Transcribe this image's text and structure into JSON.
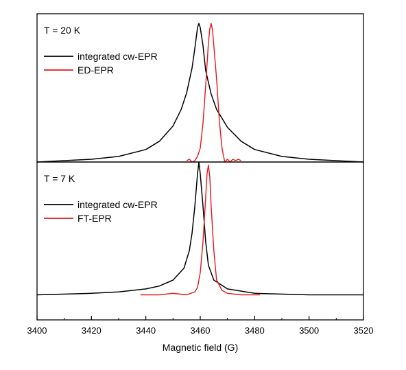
{
  "chart_data": {
    "type": "line",
    "xlabel": "Magnetic field (G)",
    "xlim": [
      3400,
      3520
    ],
    "xticks": [
      "3400",
      "3420",
      "3440",
      "3460",
      "3480",
      "3500",
      "3520"
    ],
    "shared_x_axis": true,
    "panels": [
      {
        "title": "T = 20 K",
        "ylim": [
          0,
          1.07
        ],
        "yticks_shown": false,
        "legend_position": "top-left",
        "series": [
          {
            "name": "integrated cw-EPR",
            "color": "#000000",
            "points": [
              [
                3400,
                0.0
              ],
              [
                3410,
                0.01
              ],
              [
                3420,
                0.02
              ],
              [
                3430,
                0.04
              ],
              [
                3440,
                0.09
              ],
              [
                3445,
                0.15
              ],
              [
                3450,
                0.26
              ],
              [
                3453,
                0.38
              ],
              [
                3455,
                0.5
              ],
              [
                3457,
                0.68
              ],
              [
                3458,
                0.82
              ],
              [
                3459,
                0.97
              ],
              [
                3459.5,
                1.0
              ],
              [
                3460,
                0.97
              ],
              [
                3461,
                0.84
              ],
              [
                3462,
                0.66
              ],
              [
                3464,
                0.49
              ],
              [
                3466,
                0.38
              ],
              [
                3470,
                0.25
              ],
              [
                3475,
                0.15
              ],
              [
                3480,
                0.09
              ],
              [
                3490,
                0.04
              ],
              [
                3500,
                0.02
              ],
              [
                3510,
                0.01
              ],
              [
                3520,
                0.0
              ]
            ]
          },
          {
            "name": "ED-EPR",
            "color": "#e8141c",
            "points": [
              [
                3455,
                0.01
              ],
              [
                3456,
                0.02
              ],
              [
                3457,
                0.0
              ],
              [
                3458,
                0.01
              ],
              [
                3459,
                0.04
              ],
              [
                3460,
                0.1
              ],
              [
                3461,
                0.28
              ],
              [
                3462,
                0.55
              ],
              [
                3463,
                0.86
              ],
              [
                3463.5,
                0.96
              ],
              [
                3464,
                1.0
              ],
              [
                3464.5,
                0.95
              ],
              [
                3465,
                0.84
              ],
              [
                3466,
                0.6
              ],
              [
                3467,
                0.3
              ],
              [
                3468,
                0.1
              ],
              [
                3469,
                0.0
              ],
              [
                3470,
                0.02
              ],
              [
                3471,
                0.0
              ],
              [
                3472,
                0.02
              ],
              [
                3473,
                0.01
              ],
              [
                3474,
                0.02
              ],
              [
                3475,
                0.01
              ]
            ]
          }
        ]
      },
      {
        "title": "T = 7 K",
        "ylim": [
          -0.17,
          0.9
        ],
        "yticks_shown": false,
        "legend_position": "top-left",
        "series": [
          {
            "name": "integrated cw-EPR",
            "color": "#000000",
            "points": [
              [
                3400,
                0.0
              ],
              [
                3420,
                0.01
              ],
              [
                3430,
                0.02
              ],
              [
                3440,
                0.04
              ],
              [
                3445,
                0.06
              ],
              [
                3450,
                0.1
              ],
              [
                3454,
                0.18
              ],
              [
                3456,
                0.3
              ],
              [
                3457,
                0.42
              ],
              [
                3458,
                0.6
              ],
              [
                3459,
                0.82
              ],
              [
                3459.5,
                0.9
              ],
              [
                3460,
                0.82
              ],
              [
                3461,
                0.6
              ],
              [
                3462,
                0.36
              ],
              [
                3463,
                0.2
              ],
              [
                3465,
                0.1
              ],
              [
                3470,
                0.04
              ],
              [
                3480,
                0.01
              ],
              [
                3500,
                0.0
              ],
              [
                3520,
                0.0
              ]
            ]
          },
          {
            "name": "FT-EPR",
            "color": "#e8141c",
            "points": [
              [
                3438,
                0.0
              ],
              [
                3445,
                0.0
              ],
              [
                3450,
                0.01
              ],
              [
                3455,
                0.0
              ],
              [
                3458,
                0.02
              ],
              [
                3459,
                0.05
              ],
              [
                3460,
                0.15
              ],
              [
                3461,
                0.36
              ],
              [
                3462,
                0.66
              ],
              [
                3462.5,
                0.82
              ],
              [
                3463,
                0.88
              ],
              [
                3463.5,
                0.8
              ],
              [
                3464,
                0.6
              ],
              [
                3465,
                0.3
              ],
              [
                3466,
                0.1
              ],
              [
                3468,
                0.03
              ],
              [
                3470,
                0.01
              ],
              [
                3475,
                0.0
              ],
              [
                3482,
                0.0
              ]
            ]
          }
        ]
      }
    ]
  }
}
